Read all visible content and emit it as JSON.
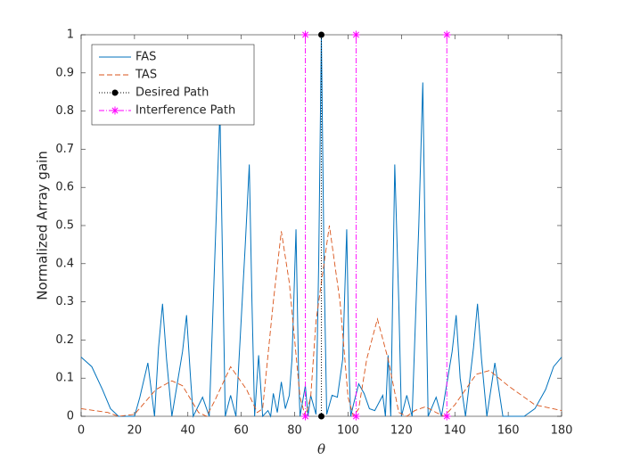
{
  "chart_data": {
    "type": "line",
    "xlabel": "θ",
    "ylabel": "Normalized Array gain",
    "xlim": [
      0,
      180
    ],
    "ylim": [
      0,
      1
    ],
    "xticks": [
      0,
      20,
      40,
      60,
      80,
      100,
      120,
      140,
      160,
      180
    ],
    "yticks": [
      0,
      0.1,
      0.2,
      0.3,
      0.4,
      0.5,
      0.6,
      0.7,
      0.8,
      0.9,
      1
    ],
    "grid": false,
    "legend": "upper-left",
    "series": [
      {
        "name": "FAS",
        "color": "#0072bd",
        "style": "solid",
        "marker": "none",
        "x": [
          0,
          4,
          8,
          11,
          14,
          20,
          22,
          25,
          27.5,
          29,
          30.5,
          32,
          34,
          38,
          39.5,
          41,
          42,
          45.5,
          48,
          50.5,
          52,
          53,
          54,
          56,
          58,
          61.5,
          63,
          64,
          65,
          66.5,
          68,
          70,
          71,
          72,
          73.5,
          75,
          76.5,
          78,
          79,
          80.5,
          81.5,
          82,
          84,
          85,
          86,
          88,
          89,
          90,
          91,
          92,
          94,
          96,
          98,
          99.5,
          100.5,
          101,
          102,
          104,
          106,
          108,
          110,
          113,
          114,
          115,
          116,
          117.5,
          119,
          120,
          122,
          124,
          126.5,
          128,
          129,
          130,
          133,
          135,
          139,
          140.5,
          142,
          144,
          147,
          148.5,
          150,
          152,
          155,
          158,
          166,
          170,
          174,
          177,
          180
        ],
        "values": [
          0.155,
          0.13,
          0.07,
          0.02,
          0,
          0,
          0.05,
          0.14,
          0,
          0.18,
          0.295,
          0.15,
          0,
          0.17,
          0.265,
          0.1,
          0,
          0.05,
          0,
          0.5,
          0.8,
          0.4,
          0,
          0.055,
          0,
          0.45,
          0.66,
          0.3,
          0,
          0.16,
          0,
          0.015,
          0,
          0.06,
          0.01,
          0.09,
          0.02,
          0.055,
          0.15,
          0.49,
          0.1,
          0,
          0.08,
          0,
          0.055,
          0.005,
          0.4,
          1,
          0.4,
          0.005,
          0.055,
          0.05,
          0.15,
          0.49,
          0.1,
          0,
          0.03,
          0.085,
          0.06,
          0.02,
          0.015,
          0.055,
          0,
          0.16,
          0,
          0.66,
          0.3,
          0,
          0.055,
          0,
          0.5,
          0.875,
          0.4,
          0,
          0.05,
          0,
          0.17,
          0.265,
          0.1,
          0,
          0.18,
          0.295,
          0.15,
          0,
          0.14,
          0,
          0,
          0.02,
          0.07,
          0.13,
          0.155
        ]
      },
      {
        "name": "TAS",
        "color": "#d95319",
        "style": "dashed",
        "marker": "none",
        "x": [
          0,
          10,
          14,
          20,
          28,
          34,
          38,
          44,
          47,
          50,
          56,
          62,
          66,
          68,
          72,
          75,
          78,
          82,
          84,
          86,
          88,
          93,
          97,
          100,
          102,
          104,
          107,
          111,
          115,
          119,
          122,
          125,
          129,
          133,
          136,
          140,
          148,
          153,
          160,
          170,
          180
        ],
        "values": [
          0.02,
          0.01,
          0,
          0.005,
          0.07,
          0.093,
          0.08,
          0.01,
          0,
          0.04,
          0.13,
          0.07,
          0.01,
          0.02,
          0.3,
          0.485,
          0.35,
          0.05,
          0,
          0.05,
          0.25,
          0.5,
          0.3,
          0.05,
          0,
          0.02,
          0.15,
          0.255,
          0.15,
          0.01,
          0,
          0.015,
          0.025,
          0.01,
          0,
          0.03,
          0.11,
          0.12,
          0.08,
          0.03,
          0.015
        ]
      },
      {
        "name": "Desired Path",
        "color": "#000000",
        "style": "dotted",
        "marker": "dot",
        "x": [
          90,
          90
        ],
        "values": [
          0,
          1
        ]
      },
      {
        "name": "Interference Path",
        "color": "#ff00ff",
        "style": "dashdot",
        "marker": "star",
        "x": [
          84,
          84,
          null,
          103,
          103,
          null,
          137,
          137
        ],
        "values": [
          0,
          1,
          null,
          0,
          1,
          null,
          0,
          1
        ]
      }
    ]
  }
}
